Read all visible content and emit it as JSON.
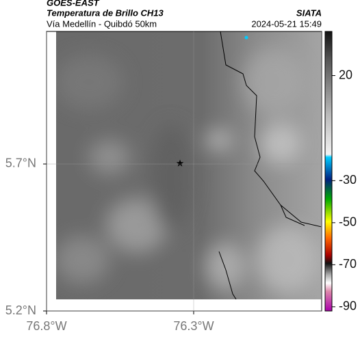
{
  "header": {
    "title": "GOES-EAST",
    "subtitle": "Temperatura de Brillo CH13",
    "region": "Vía Medellín - Quibdó 50km",
    "source": "SIATA",
    "timestamp": "2024-05-21 15:49"
  },
  "map": {
    "xlim": [
      -76.8,
      -75.865
    ],
    "ylim": [
      5.2,
      6.151
    ],
    "xticks": [
      {
        "value": -76.8,
        "label": "76.8°W"
      },
      {
        "value": -76.3,
        "label": "76.3°W"
      }
    ],
    "yticks": [
      {
        "value": 5.7,
        "label": "5.7°N"
      },
      {
        "value": 5.2,
        "label": "5.2°N"
      }
    ],
    "grid": true
  },
  "colorbar": {
    "range": [
      -92,
      41
    ],
    "ticks": [
      20,
      -30,
      -50,
      -70,
      -90
    ]
  }
}
